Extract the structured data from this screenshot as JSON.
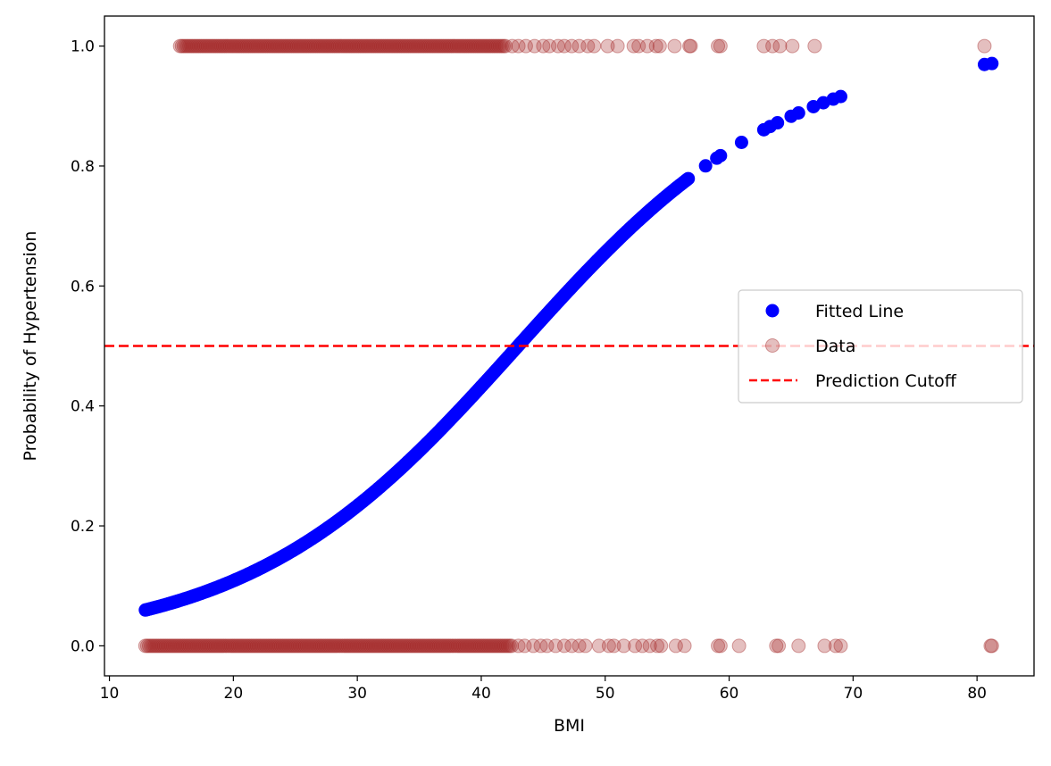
{
  "chart_data": {
    "type": "scatter",
    "xlabel": "BMI",
    "ylabel": "Probability of Hypertension",
    "xlim": [
      9.6,
      84.6
    ],
    "ylim": [
      -0.05,
      1.05
    ],
    "xticks": [
      10,
      20,
      30,
      40,
      50,
      60,
      70,
      80
    ],
    "yticks": [
      0.0,
      0.2,
      0.4,
      0.6,
      0.8,
      1.0
    ],
    "xtick_labels": [
      "10",
      "20",
      "30",
      "40",
      "50",
      "60",
      "70",
      "80"
    ],
    "ytick_labels": [
      "0.0",
      "0.2",
      "0.4",
      "0.6",
      "0.8",
      "1.0"
    ],
    "grid": false,
    "legend_position": "center-right",
    "legend": [
      {
        "label": "Fitted Line",
        "kind": "point",
        "color": "#0000ff"
      },
      {
        "label": "Data",
        "kind": "point",
        "color": "#a52a2a",
        "alpha": 0.3
      },
      {
        "label": "Prediction Cutoff",
        "kind": "dashed-line",
        "color": "#ff0000"
      }
    ],
    "cutoff": {
      "name": "Prediction Cutoff",
      "y": 0.5,
      "color": "#ff0000",
      "style": "dashed"
    },
    "fitted_curve": {
      "name": "Fitted Line",
      "color": "#0000ff",
      "model": "logistic",
      "intercept": -3.94,
      "slope": 0.0917,
      "x_dense_range": [
        12.9,
        56.8
      ],
      "x_sparse": [
        58.1,
        59.0,
        59.3,
        61.0,
        62.8,
        63.3,
        63.9,
        65.0,
        65.6,
        66.8,
        67.6,
        68.4,
        69.0,
        80.6,
        81.2
      ]
    },
    "data_points": {
      "name": "Data",
      "color": "#a52a2a",
      "alpha": 0.3,
      "y1_dense_range": [
        15.7,
        42.0
      ],
      "y1_sparse": [
        42.5,
        43.0,
        43.6,
        44.3,
        45.0,
        45.5,
        46.2,
        46.7,
        47.3,
        47.9,
        48.6,
        49.1,
        50.2,
        51.0,
        52.3,
        52.7,
        53.4,
        54.1,
        54.4,
        55.6,
        56.8,
        56.9,
        59.1,
        59.3,
        62.8,
        63.5,
        64.1,
        65.1,
        66.9,
        80.6
      ],
      "y0_dense_range": [
        12.9,
        42.5
      ],
      "y0_sparse": [
        43.0,
        43.5,
        44.2,
        44.8,
        45.3,
        46.0,
        46.7,
        47.3,
        47.9,
        48.4,
        49.5,
        50.3,
        50.7,
        51.5,
        52.4,
        53.0,
        53.6,
        54.2,
        54.5,
        55.7,
        56.4,
        59.1,
        59.3,
        60.8,
        63.8,
        64.0,
        65.6,
        67.7,
        68.6,
        69.0,
        81.1,
        81.2
      ]
    }
  }
}
